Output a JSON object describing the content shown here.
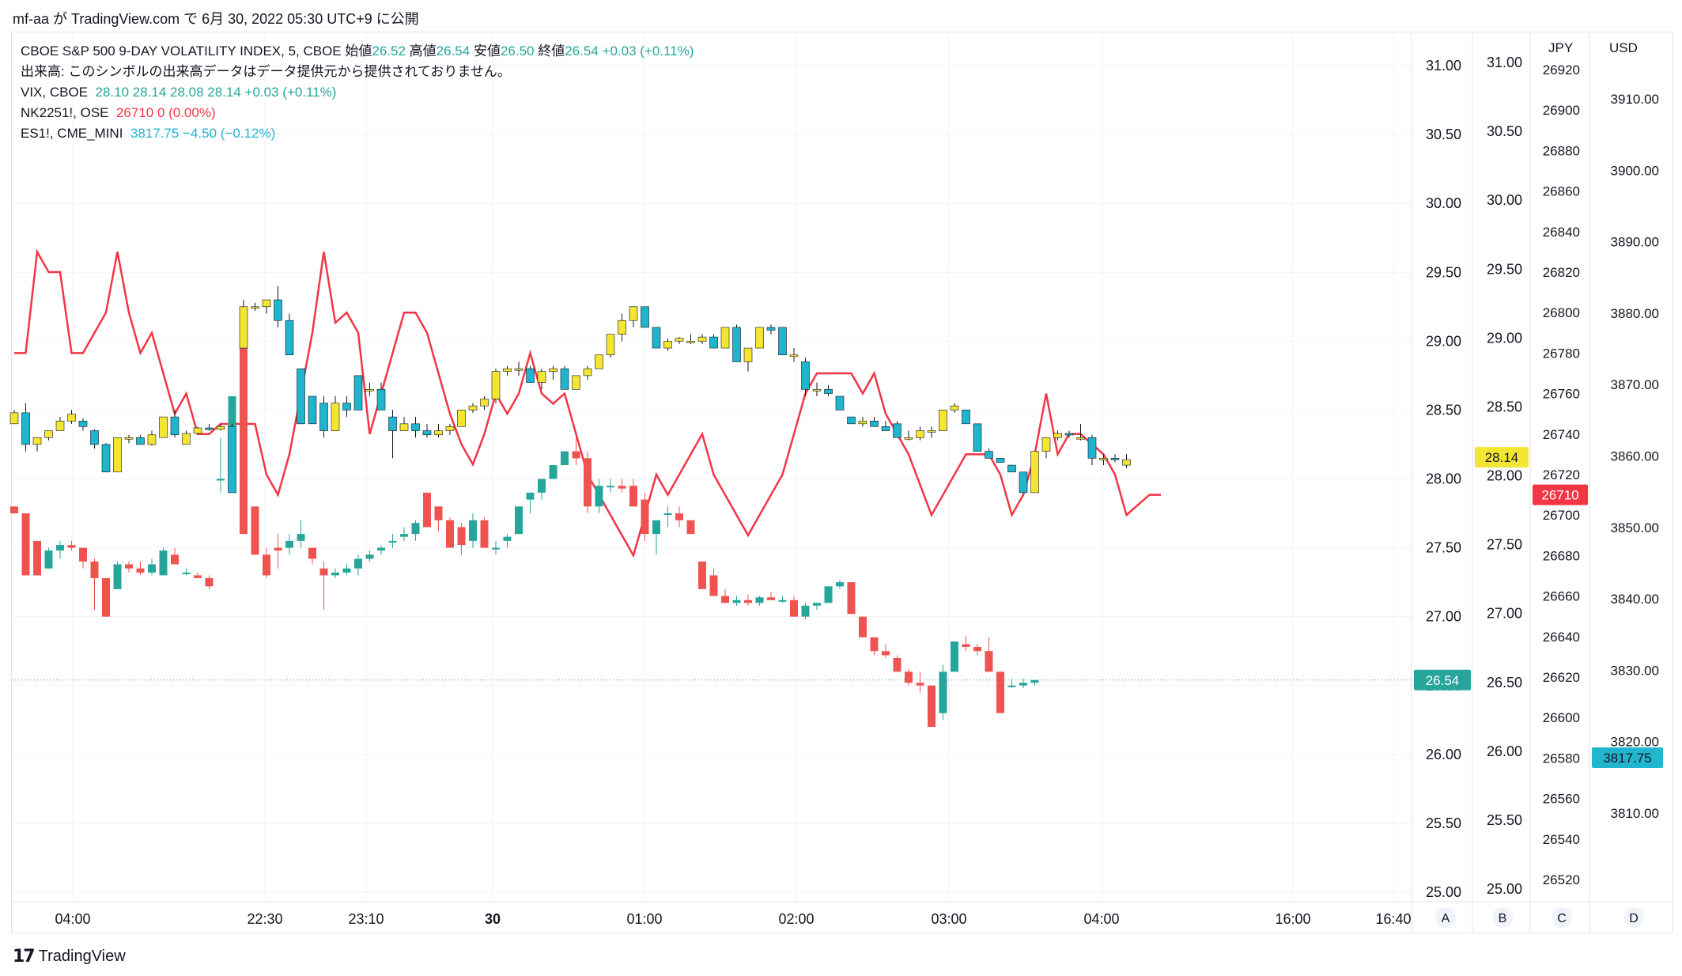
{
  "header": {
    "publish_line": "mf-aa が TradingView.com で 6月 30, 2022 05:30 UTC+9 に公開"
  },
  "legend": {
    "main_symbol": "CBOE S&P 500 9-DAY VOLATILITY INDEX, 5, CBOE",
    "open_label": "始値",
    "open_value": "26.52",
    "high_label": "高値",
    "high_value": "26.54",
    "low_label": "安値",
    "low_value": "26.50",
    "close_label": "終値",
    "close_value": "26.54",
    "change": "+0.03 (+0.11%)",
    "volume_note": "出来高: このシンボルの出来高データはデータ提供元から提供されておりません。",
    "vix_label": "VIX, CBOE",
    "vix_values": "28.10  28.14  28.08  28.14  +0.03 (+0.11%)",
    "nk_label": "NK2251!, OSE",
    "nk_values": "26710  0 (0.00%)",
    "es_label": "ES1!, CME_MINI",
    "es_values": "3817.75  −4.50 (−0.12%)"
  },
  "footer": {
    "brand": "TradingView"
  },
  "colors": {
    "up": "#26a69a",
    "down": "#ef5350",
    "vix_up": "#f5e533",
    "vix_down": "#1fb5cc",
    "nk_line": "#f23645",
    "es_line": "#22b5cf"
  },
  "chart_data": {
    "type": "candlestick",
    "x_ticks": [
      "04:00",
      "22:30",
      "23:10",
      "30",
      "01:00",
      "02:00",
      "03:00",
      "04:00",
      "16:00",
      "16:40"
    ],
    "axis_letters": [
      "A",
      "B",
      "C",
      "D"
    ],
    "axis_A": {
      "ticks": [
        "31.00",
        "30.50",
        "30.00",
        "29.50",
        "29.00",
        "28.50",
        "28.00",
        "27.50",
        "27.00",
        "26.50",
        "26.00",
        "25.50",
        "25.00"
      ],
      "last_label": "26.54"
    },
    "axis_B": {
      "ticks": [
        "31.00",
        "30.50",
        "30.00",
        "29.50",
        "29.00",
        "28.50",
        "28.00",
        "27.50",
        "27.00",
        "26.50",
        "26.00",
        "25.50",
        "25.00"
      ],
      "last_label": "28.14"
    },
    "axis_C": {
      "unit": "JPY",
      "ticks": [
        "26920",
        "26900",
        "26880",
        "26860",
        "26840",
        "26820",
        "26800",
        "26780",
        "26760",
        "26740",
        "26720",
        "26700",
        "26680",
        "26660",
        "26640",
        "26620",
        "26600",
        "26580",
        "26560",
        "26540",
        "26520"
      ],
      "last_label": "26710"
    },
    "axis_D": {
      "unit": "USD",
      "ticks": [
        "3910.00",
        "3900.00",
        "3890.00",
        "3880.00",
        "3870.00",
        "3860.00",
        "3850.00",
        "3840.00",
        "3830.00",
        "3820.00",
        "3810.00"
      ],
      "last_label": "3817.75"
    },
    "vix9d": [
      [
        27.8,
        27.8,
        27.75,
        27.75
      ],
      [
        27.75,
        27.75,
        27.3,
        27.3
      ],
      [
        27.55,
        27.55,
        27.3,
        27.3
      ],
      [
        27.35,
        27.5,
        27.35,
        27.48
      ],
      [
        27.48,
        27.55,
        27.42,
        27.52
      ],
      [
        27.52,
        27.55,
        27.48,
        27.5
      ],
      [
        27.5,
        27.5,
        27.35,
        27.4
      ],
      [
        27.4,
        27.42,
        27.05,
        27.28
      ],
      [
        27.28,
        27.28,
        27.0,
        27.0
      ],
      [
        27.2,
        27.4,
        27.2,
        27.38
      ],
      [
        27.38,
        27.4,
        27.32,
        27.35
      ],
      [
        27.35,
        27.4,
        27.3,
        27.32
      ],
      [
        27.32,
        27.42,
        27.3,
        27.38
      ],
      [
        27.3,
        27.5,
        27.3,
        27.48
      ],
      [
        27.45,
        27.5,
        27.38,
        27.38
      ],
      [
        27.32,
        27.35,
        27.3,
        27.32
      ],
      [
        27.3,
        27.32,
        27.28,
        27.28
      ],
      [
        27.28,
        27.3,
        27.2,
        27.22
      ],
      [
        28.0,
        28.3,
        27.9,
        28.0
      ],
      [
        28.2,
        28.6,
        28.2,
        28.6
      ],
      [
        29.0,
        29.0,
        27.6,
        27.6
      ],
      [
        27.8,
        27.8,
        27.45,
        27.45
      ],
      [
        27.45,
        27.5,
        27.28,
        27.3
      ],
      [
        27.5,
        27.6,
        27.35,
        27.48
      ],
      [
        27.5,
        27.6,
        27.45,
        27.55
      ],
      [
        27.55,
        27.7,
        27.5,
        27.6
      ],
      [
        27.5,
        27.5,
        27.38,
        27.42
      ],
      [
        27.35,
        27.4,
        27.05,
        27.3
      ],
      [
        27.3,
        27.35,
        27.28,
        27.32
      ],
      [
        27.32,
        27.38,
        27.3,
        27.35
      ],
      [
        27.35,
        27.45,
        27.3,
        27.42
      ],
      [
        27.42,
        27.48,
        27.4,
        27.45
      ],
      [
        27.48,
        27.52,
        27.45,
        27.5
      ],
      [
        27.55,
        27.6,
        27.5,
        27.55
      ],
      [
        27.58,
        27.65,
        27.55,
        27.6
      ],
      [
        27.6,
        27.7,
        27.55,
        27.68
      ],
      [
        27.9,
        27.9,
        27.65,
        27.65
      ],
      [
        27.8,
        27.8,
        27.62,
        27.7
      ],
      [
        27.7,
        27.72,
        27.5,
        27.5
      ],
      [
        27.65,
        27.68,
        27.45,
        27.52
      ],
      [
        27.55,
        27.75,
        27.5,
        27.7
      ],
      [
        27.7,
        27.72,
        27.5,
        27.5
      ],
      [
        27.5,
        27.55,
        27.45,
        27.5
      ],
      [
        27.55,
        27.6,
        27.5,
        27.58
      ],
      [
        27.6,
        27.8,
        27.6,
        27.8
      ],
      [
        27.85,
        27.9,
        27.75,
        27.9
      ],
      [
        27.9,
        28.0,
        27.85,
        28.0
      ],
      [
        28.0,
        28.1,
        28.0,
        28.1
      ],
      [
        28.1,
        28.2,
        28.1,
        28.2
      ],
      [
        28.2,
        28.3,
        28.1,
        28.15
      ],
      [
        28.15,
        28.2,
        27.75,
        27.8
      ],
      [
        27.8,
        28.0,
        27.75,
        27.95
      ],
      [
        27.95,
        28.0,
        27.9,
        27.95
      ],
      [
        27.95,
        28.0,
        27.9,
        27.93
      ],
      [
        27.95,
        28.0,
        27.8,
        27.8
      ],
      [
        27.85,
        27.9,
        27.55,
        27.6
      ],
      [
        27.6,
        27.7,
        27.45,
        27.7
      ],
      [
        27.75,
        27.8,
        27.65,
        27.75
      ],
      [
        27.75,
        27.8,
        27.65,
        27.7
      ],
      [
        27.7,
        27.7,
        27.6,
        27.6
      ],
      [
        27.4,
        27.4,
        27.2,
        27.2
      ],
      [
        27.3,
        27.35,
        27.15,
        27.15
      ],
      [
        27.15,
        27.2,
        27.1,
        27.1
      ],
      [
        27.1,
        27.15,
        27.08,
        27.12
      ],
      [
        27.12,
        27.16,
        27.08,
        27.1
      ],
      [
        27.1,
        27.15,
        27.08,
        27.14
      ],
      [
        27.14,
        27.18,
        27.12,
        27.12
      ],
      [
        27.12,
        27.15,
        27.1,
        27.12
      ],
      [
        27.12,
        27.15,
        27.0,
        27.0
      ],
      [
        27.0,
        27.1,
        26.98,
        27.08
      ],
      [
        27.08,
        27.1,
        27.05,
        27.1
      ],
      [
        27.1,
        27.22,
        27.1,
        27.22
      ],
      [
        27.22,
        27.27,
        27.2,
        27.25
      ],
      [
        27.25,
        27.25,
        27.02,
        27.02
      ],
      [
        27.0,
        27.0,
        26.85,
        26.85
      ],
      [
        26.85,
        26.85,
        26.72,
        26.75
      ],
      [
        26.75,
        26.8,
        26.7,
        26.72
      ],
      [
        26.7,
        26.72,
        26.6,
        26.6
      ],
      [
        26.6,
        26.62,
        26.5,
        26.52
      ],
      [
        26.52,
        26.6,
        26.45,
        26.5
      ],
      [
        26.5,
        26.5,
        26.2,
        26.2
      ],
      [
        26.3,
        26.65,
        26.25,
        26.6
      ],
      [
        26.6,
        26.82,
        26.6,
        26.82
      ],
      [
        26.8,
        26.86,
        26.75,
        26.78
      ],
      [
        26.78,
        26.8,
        26.72,
        26.75
      ],
      [
        26.75,
        26.85,
        26.6,
        26.6
      ],
      [
        26.6,
        26.6,
        26.3,
        26.3
      ],
      [
        26.5,
        26.55,
        26.48,
        26.5
      ],
      [
        26.5,
        26.55,
        26.48,
        26.52
      ],
      [
        26.52,
        26.54,
        26.5,
        26.54
      ]
    ],
    "vix": [
      [
        28.4,
        28.5,
        28.4,
        28.48
      ],
      [
        28.48,
        28.55,
        28.2,
        28.25
      ],
      [
        28.25,
        28.3,
        28.2,
        28.3
      ],
      [
        28.3,
        28.35,
        28.28,
        28.35
      ],
      [
        28.35,
        28.45,
        28.35,
        28.42
      ],
      [
        28.42,
        28.5,
        28.4,
        28.47
      ],
      [
        28.42,
        28.44,
        28.35,
        28.38
      ],
      [
        28.35,
        28.36,
        28.22,
        28.25
      ],
      [
        28.25,
        28.26,
        28.05,
        28.05
      ],
      [
        28.05,
        28.3,
        28.05,
        28.3
      ],
      [
        28.3,
        28.32,
        28.26,
        28.3
      ],
      [
        28.3,
        28.32,
        28.25,
        28.25
      ],
      [
        28.25,
        28.35,
        28.24,
        28.32
      ],
      [
        28.3,
        28.45,
        28.3,
        28.45
      ],
      [
        28.45,
        28.5,
        28.3,
        28.32
      ],
      [
        28.25,
        28.35,
        28.25,
        28.33
      ],
      [
        28.33,
        28.38,
        28.32,
        28.37
      ],
      [
        28.37,
        28.4,
        28.35,
        28.36
      ],
      [
        28.36,
        28.4,
        28.35,
        28.38
      ],
      [
        28.38,
        28.4,
        27.9,
        27.9
      ],
      [
        28.95,
        29.3,
        28.95,
        29.25
      ],
      [
        29.25,
        29.28,
        29.22,
        29.25
      ],
      [
        29.25,
        29.3,
        29.2,
        29.3
      ],
      [
        29.3,
        29.4,
        29.1,
        29.15
      ],
      [
        29.15,
        29.2,
        28.9,
        28.9
      ],
      [
        28.8,
        28.8,
        28.4,
        28.4
      ],
      [
        28.6,
        28.6,
        28.4,
        28.4
      ],
      [
        28.55,
        28.6,
        28.3,
        28.35
      ],
      [
        28.35,
        28.6,
        28.35,
        28.55
      ],
      [
        28.55,
        28.6,
        28.45,
        28.5
      ],
      [
        28.75,
        28.75,
        28.5,
        28.5
      ],
      [
        28.65,
        28.7,
        28.6,
        28.65
      ],
      [
        28.65,
        28.7,
        28.5,
        28.5
      ],
      [
        28.45,
        28.5,
        28.15,
        28.35
      ],
      [
        28.35,
        28.45,
        28.35,
        28.4
      ],
      [
        28.4,
        28.45,
        28.3,
        28.35
      ],
      [
        28.35,
        28.4,
        28.3,
        28.32
      ],
      [
        28.32,
        28.4,
        28.3,
        28.35
      ],
      [
        28.35,
        28.4,
        28.32,
        28.38
      ],
      [
        28.38,
        28.5,
        28.38,
        28.5
      ],
      [
        28.5,
        28.55,
        28.48,
        28.53
      ],
      [
        28.53,
        28.6,
        28.5,
        28.58
      ],
      [
        28.58,
        28.8,
        28.55,
        28.78
      ],
      [
        28.78,
        28.82,
        28.75,
        28.8
      ],
      [
        28.8,
        28.85,
        28.75,
        28.8
      ],
      [
        28.8,
        28.82,
        28.7,
        28.7
      ],
      [
        28.7,
        28.8,
        28.65,
        28.78
      ],
      [
        28.78,
        28.82,
        28.72,
        28.8
      ],
      [
        28.8,
        28.82,
        28.65,
        28.65
      ],
      [
        28.65,
        28.75,
        28.65,
        28.75
      ],
      [
        28.75,
        28.82,
        28.72,
        28.8
      ],
      [
        28.8,
        28.9,
        28.8,
        28.9
      ],
      [
        28.9,
        29.05,
        28.88,
        29.05
      ],
      [
        29.05,
        29.2,
        29.0,
        29.15
      ],
      [
        29.15,
        29.25,
        29.1,
        29.25
      ],
      [
        29.25,
        29.25,
        29.1,
        29.1
      ],
      [
        29.1,
        29.1,
        28.95,
        28.95
      ],
      [
        28.95,
        29.02,
        28.93,
        29.0
      ],
      [
        29.0,
        29.03,
        28.98,
        29.02
      ],
      [
        29.0,
        29.05,
        28.98,
        29.0
      ],
      [
        29.0,
        29.05,
        28.98,
        29.03
      ],
      [
        29.03,
        29.05,
        28.95,
        28.95
      ],
      [
        28.95,
        29.1,
        28.95,
        29.1
      ],
      [
        29.1,
        29.12,
        28.85,
        28.85
      ],
      [
        28.85,
        28.95,
        28.78,
        28.95
      ],
      [
        28.95,
        29.1,
        28.95,
        29.1
      ],
      [
        29.1,
        29.12,
        29.05,
        29.08
      ],
      [
        29.1,
        29.1,
        28.9,
        28.9
      ],
      [
        28.9,
        28.95,
        28.85,
        28.9
      ],
      [
        28.85,
        28.88,
        28.6,
        28.65
      ],
      [
        28.65,
        28.7,
        28.6,
        28.65
      ],
      [
        28.65,
        28.68,
        28.6,
        28.62
      ],
      [
        28.6,
        28.6,
        28.5,
        28.5
      ],
      [
        28.45,
        28.45,
        28.4,
        28.4
      ],
      [
        28.4,
        28.45,
        28.38,
        28.42
      ],
      [
        28.42,
        28.45,
        28.38,
        28.38
      ],
      [
        28.38,
        28.42,
        28.35,
        28.35
      ],
      [
        28.4,
        28.42,
        28.3,
        28.3
      ],
      [
        28.3,
        28.35,
        28.28,
        28.3
      ],
      [
        28.3,
        28.38,
        28.28,
        28.35
      ],
      [
        28.35,
        28.38,
        28.3,
        28.35
      ],
      [
        28.35,
        28.5,
        28.35,
        28.5
      ],
      [
        28.5,
        28.55,
        28.48,
        28.53
      ],
      [
        28.5,
        28.5,
        28.4,
        28.4
      ],
      [
        28.4,
        28.4,
        28.2,
        28.2
      ],
      [
        28.2,
        28.22,
        28.15,
        28.15
      ],
      [
        28.15,
        28.15,
        28.12,
        28.12
      ],
      [
        28.1,
        28.1,
        28.05,
        28.05
      ],
      [
        28.05,
        28.05,
        27.9,
        27.9
      ],
      [
        27.9,
        28.2,
        27.9,
        28.2
      ],
      [
        28.2,
        28.3,
        28.15,
        28.3
      ],
      [
        28.3,
        28.35,
        28.28,
        28.33
      ],
      [
        28.33,
        28.35,
        28.3,
        28.32
      ],
      [
        28.3,
        28.4,
        28.28,
        28.3
      ],
      [
        28.3,
        28.32,
        28.1,
        28.15
      ],
      [
        28.15,
        28.18,
        28.1,
        28.15
      ],
      [
        28.15,
        28.18,
        28.12,
        28.14
      ],
      [
        28.1,
        28.18,
        28.08,
        28.14
      ]
    ],
    "nk2251": [
      26780,
      26780,
      26830,
      26820,
      26820,
      26780,
      26780,
      26790,
      26800,
      26830,
      26800,
      26780,
      26790,
      26770,
      26750,
      26760,
      26740,
      26740,
      26745,
      26745,
      26745,
      26745,
      26720,
      26710,
      26730,
      26760,
      26790,
      26830,
      26795,
      26800,
      26790,
      26740,
      26760,
      26780,
      26800,
      26800,
      26790,
      26770,
      26750,
      26735,
      26725,
      26740,
      26760,
      26750,
      26760,
      26780,
      26760,
      26755,
      26760,
      26740,
      26720,
      26710,
      26700,
      26690,
      26680,
      26700,
      26720,
      26710,
      26720,
      26730,
      26740,
      26720,
      26710,
      26700,
      26690,
      26700,
      26710,
      26720,
      26740,
      26760,
      26770,
      26770,
      26770,
      26770,
      26760,
      26770,
      26750,
      26740,
      26730,
      26715,
      26700,
      26710,
      26720,
      26730,
      26730,
      26730,
      26720,
      26700,
      26710,
      26730,
      26760,
      26730,
      26740,
      26740,
      26735,
      26730,
      26720,
      26700,
      26705,
      26710,
      26710
    ]
  }
}
